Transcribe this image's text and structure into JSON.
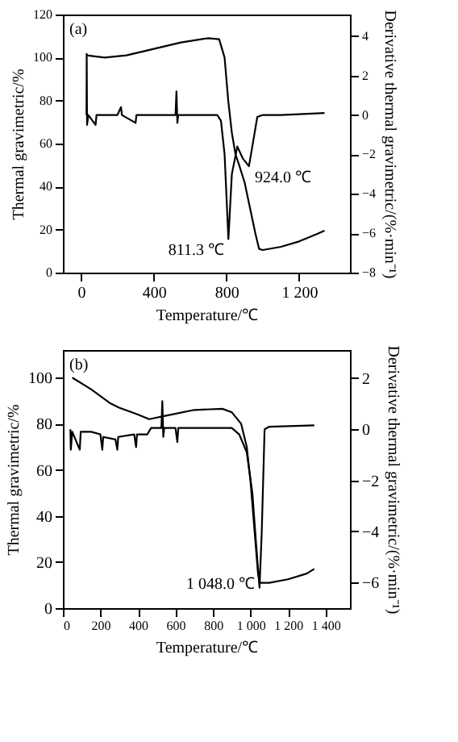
{
  "chart_data": [
    {
      "type": "line",
      "xlabel": "Temperature/℃",
      "ylabel": "Thermal gravimetric/%",
      "y2label": "Derivative thermal gravimetric/(%·min⁻¹)",
      "xlim": [
        -100,
        1480
      ],
      "xticks": [
        0,
        400,
        800,
        {
          "value": 1200,
          "label": "1 200"
        }
      ],
      "ylim": [
        0,
        120
      ],
      "yticks": [
        0,
        20,
        40,
        60,
        80,
        100,
        120
      ],
      "y2lim": [
        -8,
        5.1
      ],
      "y2ticks": [
        -8,
        -6,
        -4,
        -2,
        0,
        2,
        4
      ],
      "grid": false,
      "annotations": [
        "(a)",
        "811.3 ℃",
        "924.0 ℃"
      ],
      "series": [
        {
          "color": "#000000",
          "x": [
            30,
            130,
            250,
            400,
            550,
            700,
            760,
            790,
            810,
            830,
            850,
            870,
            900,
            930,
            960,
            980,
            1000,
            1100,
            1200,
            1300,
            1340
          ],
          "values": [
            101,
            100,
            101,
            104,
            107,
            109,
            108.5,
            100,
            80,
            65,
            55,
            50,
            42,
            30,
            18,
            11,
            10.5,
            12,
            14.5,
            18,
            19.5
          ]
        },
        {
          "color": "#000000",
          "axis": "y2",
          "x": [
            30,
            31,
            33,
            40,
            80,
            85,
            90,
            200,
            220,
            225,
            300,
            305,
            310,
            520,
            525,
            530,
            535,
            750,
            770,
            790,
            811,
            830,
            860,
            890,
            924,
            950,
            970,
            1000,
            1100,
            1340
          ],
          "values": [
            0,
            3.1,
            -0.5,
            0,
            -0.5,
            0,
            0,
            0,
            0.4,
            0,
            -0.4,
            0,
            0,
            0,
            1.2,
            -0.4,
            0,
            0,
            -0.3,
            -2,
            -6.3,
            -3,
            -1.6,
            -2.2,
            -2.6,
            -1.2,
            -0.1,
            0,
            0,
            0.1
          ]
        }
      ]
    },
    {
      "type": "line",
      "xlabel": "Temperature/℃",
      "ylabel": "Thermal gravimetric/%",
      "y2label": "Derivative thermal gravimetric/(%·min⁻¹)",
      "xlim": [
        0,
        1530
      ],
      "xticks": [
        0,
        200,
        400,
        600,
        800,
        {
          "value": 1000,
          "label": "1 000"
        },
        {
          "value": 1200,
          "label": "1 200"
        },
        {
          "value": 1400,
          "label": "1 400"
        }
      ],
      "ylim": [
        0,
        112
      ],
      "yticks": [
        0,
        20,
        40,
        60,
        80,
        100
      ],
      "y2lim": [
        -7,
        3.1
      ],
      "y2ticks": [
        -6,
        -4,
        -2,
        0,
        2
      ],
      "grid": false,
      "annotations": [
        "(b)",
        "1 048.0 ℃"
      ],
      "series": [
        {
          "color": "#000000",
          "x": [
            50,
            150,
            250,
            300,
            400,
            460,
            550,
            700,
            850,
            900,
            950,
            980,
            1000,
            1020,
            1040,
            1050,
            1100,
            1200,
            1300,
            1340
          ],
          "values": [
            100,
            95,
            89,
            87,
            84,
            82,
            83.5,
            86,
            86.5,
            85,
            80,
            70,
            55,
            35,
            15,
            11,
            11,
            12.5,
            15,
            17
          ]
        },
        {
          "color": "#000000",
          "axis": "y2",
          "x": [
            40,
            42,
            50,
            90,
            95,
            150,
            200,
            210,
            215,
            280,
            290,
            295,
            380,
            390,
            395,
            450,
            470,
            525,
            530,
            535,
            540,
            600,
            610,
            615,
            900,
            940,
            980,
            1010,
            1030,
            1048,
            1060,
            1075,
            1100,
            1340
          ],
          "values": [
            0,
            -0.8,
            -0.1,
            -0.8,
            -0.1,
            -0.1,
            -0.2,
            -0.8,
            -0.3,
            -0.4,
            -0.8,
            -0.3,
            -0.2,
            -0.7,
            -0.2,
            -0.2,
            0.05,
            0.05,
            1.1,
            -0.3,
            0.05,
            0.05,
            -0.5,
            0.05,
            0.05,
            -0.2,
            -0.9,
            -2.5,
            -4.5,
            -6.2,
            -4,
            0,
            0.1,
            0.15
          ]
        }
      ]
    }
  ]
}
